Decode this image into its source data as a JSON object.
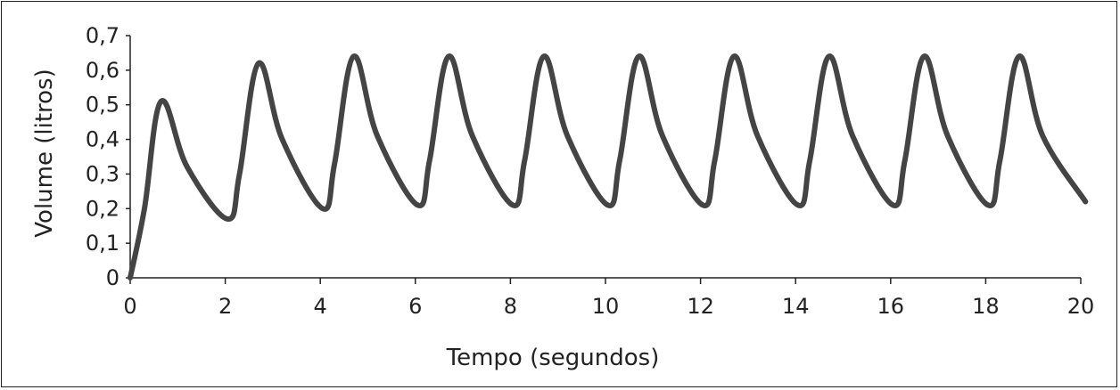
{
  "chart_data": {
    "type": "line",
    "title": "",
    "xlabel": "Tempo (segundos)",
    "ylabel": "Volume (litros)",
    "xlim": [
      0,
      20
    ],
    "ylim": [
      0,
      0.7
    ],
    "x_ticks": [
      0,
      2,
      4,
      6,
      8,
      10,
      12,
      14,
      16,
      18,
      20
    ],
    "x_tick_labels": [
      "0",
      "2",
      "4",
      "6",
      "8",
      "10",
      "12",
      "14",
      "16",
      "18",
      "20"
    ],
    "y_ticks": [
      0,
      0.1,
      0.2,
      0.3,
      0.4,
      0.5,
      0.6,
      0.7
    ],
    "y_tick_labels": [
      "0",
      "0,1",
      "0,2",
      "0,3",
      "0,4",
      "0,5",
      "0,6",
      "0,7"
    ],
    "grid": false,
    "line_color": "#444444",
    "series": [
      {
        "x": [
          0,
          0.3,
          0.65,
          1.2,
          2.05,
          2.3,
          2.7,
          3.2,
          4.05,
          4.3,
          4.7,
          5.2,
          6.05,
          6.3,
          6.7,
          7.2,
          8.05,
          8.3,
          8.7,
          9.2,
          10.05,
          10.3,
          10.7,
          11.2,
          12.05,
          12.3,
          12.7,
          13.2,
          14.05,
          14.3,
          14.7,
          15.2,
          16.05,
          16.3,
          16.7,
          17.2,
          18.05,
          18.3,
          18.7,
          19.2,
          20.1
        ],
        "values": [
          0,
          0.2,
          0.51,
          0.32,
          0.17,
          0.3,
          0.62,
          0.4,
          0.2,
          0.33,
          0.64,
          0.41,
          0.21,
          0.34,
          0.64,
          0.41,
          0.21,
          0.34,
          0.64,
          0.41,
          0.21,
          0.34,
          0.64,
          0.41,
          0.21,
          0.34,
          0.64,
          0.41,
          0.21,
          0.34,
          0.64,
          0.41,
          0.21,
          0.34,
          0.64,
          0.41,
          0.21,
          0.34,
          0.64,
          0.41,
          0.22
        ]
      }
    ]
  }
}
